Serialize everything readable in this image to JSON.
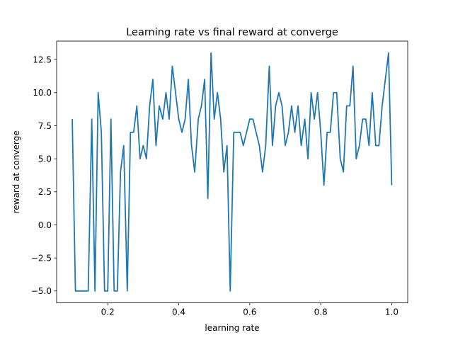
{
  "chart_data": {
    "type": "line",
    "title": "Learning rate vs final reward at converge",
    "xlabel": "learning rate",
    "ylabel": "reward at converge",
    "xlim": [
      0.056,
      1.045
    ],
    "ylim": [
      -5.9,
      13.9
    ],
    "xticks": [
      0.2,
      0.4,
      0.6,
      0.8,
      1.0
    ],
    "xtick_labels": [
      "0.2",
      "0.4",
      "0.6",
      "0.8",
      "1.0"
    ],
    "yticks": [
      -5.0,
      -2.5,
      0.0,
      2.5,
      5.0,
      7.5,
      10.0,
      12.5
    ],
    "ytick_labels": [
      "−5.0",
      "−2.5",
      "0.0",
      "2.5",
      "5.0",
      "7.5",
      "10.0",
      "12.5"
    ],
    "grid": false,
    "color": "#1f77b4",
    "series": [
      {
        "x": [
          0.1,
          0.109,
          0.118,
          0.127,
          0.136,
          0.145,
          0.155,
          0.164,
          0.173,
          0.182,
          0.191,
          0.2,
          0.209,
          0.218,
          0.227,
          0.236,
          0.245,
          0.255,
          0.264,
          0.273,
          0.282,
          0.291,
          0.3,
          0.309,
          0.318,
          0.327,
          0.336,
          0.345,
          0.355,
          0.364,
          0.373,
          0.382,
          0.391,
          0.4,
          0.409,
          0.418,
          0.427,
          0.436,
          0.445,
          0.455,
          0.464,
          0.473,
          0.482,
          0.491,
          0.5,
          0.509,
          0.518,
          0.527,
          0.536,
          0.545,
          0.555,
          0.564,
          0.573,
          0.582,
          0.591,
          0.6,
          0.609,
          0.618,
          0.627,
          0.636,
          0.645,
          0.655,
          0.664,
          0.673,
          0.682,
          0.691,
          0.7,
          0.709,
          0.718,
          0.727,
          0.736,
          0.745,
          0.755,
          0.764,
          0.773,
          0.782,
          0.791,
          0.8,
          0.809,
          0.818,
          0.827,
          0.836,
          0.845,
          0.855,
          0.864,
          0.873,
          0.882,
          0.891,
          0.9,
          0.909,
          0.918,
          0.927,
          0.936,
          0.945,
          0.955,
          0.964,
          0.973,
          0.982,
          0.991,
          1.0
        ],
        "values": [
          8,
          -5,
          -5,
          -5,
          -5,
          -5,
          8,
          -5,
          10,
          7,
          -5,
          -5,
          8,
          -5,
          -5,
          4,
          6,
          -5,
          7,
          7,
          9,
          5,
          6,
          5,
          9,
          11,
          6,
          9,
          8,
          10,
          8,
          12,
          10,
          8,
          7,
          8,
          11,
          6,
          4,
          8,
          9,
          11,
          2,
          13,
          8,
          10,
          8,
          4,
          6,
          -5,
          7,
          7,
          7,
          6,
          7,
          8,
          8,
          7,
          6,
          4,
          6,
          12,
          6,
          9,
          10,
          9,
          6,
          7,
          9,
          7,
          9,
          6,
          8,
          5,
          10,
          8,
          10,
          7,
          3,
          7,
          7,
          10,
          10,
          5,
          4,
          9,
          9,
          12,
          5,
          6,
          8,
          8,
          6,
          10,
          6,
          6,
          9,
          11,
          13,
          3
        ]
      }
    ]
  }
}
